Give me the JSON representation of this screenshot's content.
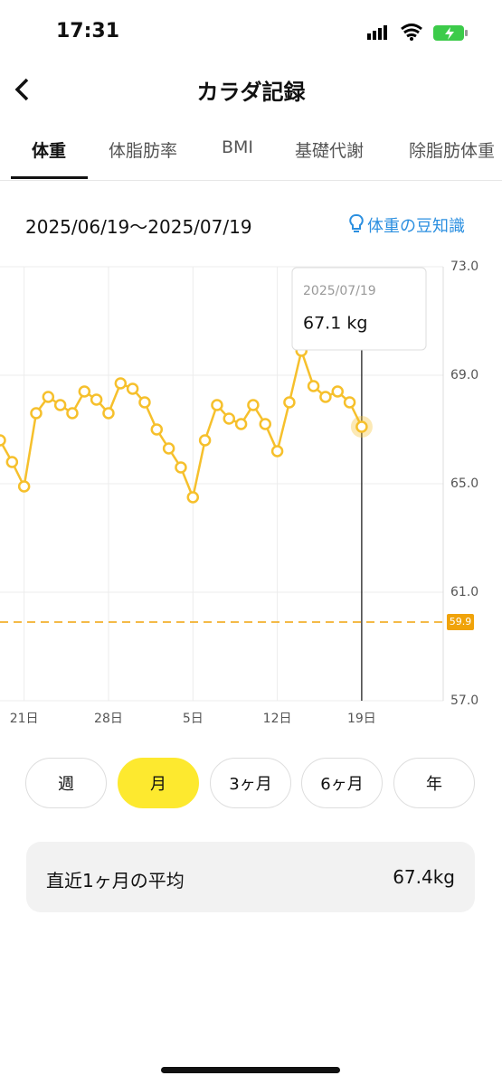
{
  "status_bar": {
    "time": "17:31"
  },
  "header": {
    "title": "カラダ記録"
  },
  "tabs": [
    "体重",
    "体脂肪率",
    "BMI",
    "基礎代謝",
    "除脂肪体重"
  ],
  "date_range": "2025/06/19〜2025/07/19",
  "tip_link": "体重の豆知識",
  "chart_data": {
    "type": "line",
    "categories": [
      null,
      null,
      "21日",
      null,
      null,
      null,
      null,
      null,
      null,
      "28日",
      null,
      null,
      null,
      null,
      null,
      null,
      "5日",
      null,
      null,
      null,
      null,
      null,
      null,
      "12日",
      null,
      null,
      null,
      null,
      null,
      null,
      "19日"
    ],
    "values": [
      66.6,
      65.8,
      64.9,
      67.6,
      68.2,
      67.9,
      67.6,
      68.4,
      68.1,
      67.6,
      68.7,
      68.5,
      68.0,
      67.0,
      66.3,
      65.6,
      64.5,
      66.6,
      67.9,
      67.4,
      67.2,
      67.9,
      67.2,
      66.2,
      68.0,
      69.9,
      68.6,
      68.2,
      68.4,
      68.0,
      67.1
    ],
    "color": "#f6c02c",
    "ylim": [
      57,
      73
    ],
    "yticks": [
      {
        "value": 57,
        "label": "57.0"
      },
      {
        "value": 61,
        "label": "61.0"
      },
      {
        "value": 65,
        "label": "65.0"
      },
      {
        "value": 69,
        "label": "69.0"
      },
      {
        "value": 73,
        "label": "73.0"
      }
    ],
    "grid": true,
    "reference_line": {
      "value": 59.9,
      "label": "59.9",
      "color": "#f0a30a"
    },
    "tooltip": {
      "title": "2025/07/19",
      "label": "67.1 kg"
    }
  },
  "periods": [
    "週",
    "月",
    "3ヶ月",
    "6ヶ月",
    "年"
  ],
  "selected_period": 1,
  "average": {
    "label": "直近1ヶ月の平均",
    "value": "67.4kg"
  }
}
